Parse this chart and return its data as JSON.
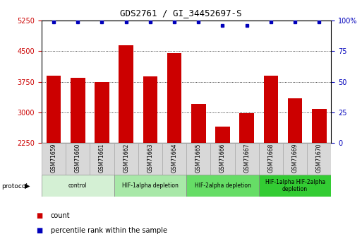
{
  "title": "GDS2761 / GI_34452697-S",
  "samples": [
    "GSM71659",
    "GSM71660",
    "GSM71661",
    "GSM71662",
    "GSM71663",
    "GSM71664",
    "GSM71665",
    "GSM71666",
    "GSM71667",
    "GSM71668",
    "GSM71669",
    "GSM71670"
  ],
  "counts": [
    3900,
    3850,
    3750,
    4650,
    3875,
    4450,
    3200,
    2650,
    2970,
    3900,
    3350,
    3075
  ],
  "percentile_ranks": [
    99,
    99,
    99,
    99,
    99,
    99,
    99,
    96,
    96,
    99,
    99,
    99
  ],
  "ylim_left": [
    2250,
    5250
  ],
  "ylim_right": [
    0,
    100
  ],
  "yticks_left": [
    2250,
    3000,
    3750,
    4500,
    5250
  ],
  "yticks_right": [
    0,
    25,
    50,
    75,
    100
  ],
  "bar_color": "#cc0000",
  "dot_color": "#0000bb",
  "background_color": "#ffffff",
  "plot_bg_color": "#ffffff",
  "protocol_groups": [
    {
      "label": "control",
      "start": 0,
      "end": 2,
      "color": "#d4f0d4"
    },
    {
      "label": "HIF-1alpha depletion",
      "start": 3,
      "end": 5,
      "color": "#a8e8a8"
    },
    {
      "label": "HIF-2alpha depletion",
      "start": 6,
      "end": 8,
      "color": "#66dd66"
    },
    {
      "label": "HIF-1alpha HIF-2alpha\ndepletion",
      "start": 9,
      "end": 11,
      "color": "#33cc33"
    }
  ],
  "tick_label_color_left": "#cc0000",
  "tick_label_color_right": "#0000bb",
  "legend_count_color": "#cc0000",
  "legend_pct_color": "#0000bb",
  "label_box_color": "#d8d8d8",
  "label_box_edge": "#aaaaaa"
}
